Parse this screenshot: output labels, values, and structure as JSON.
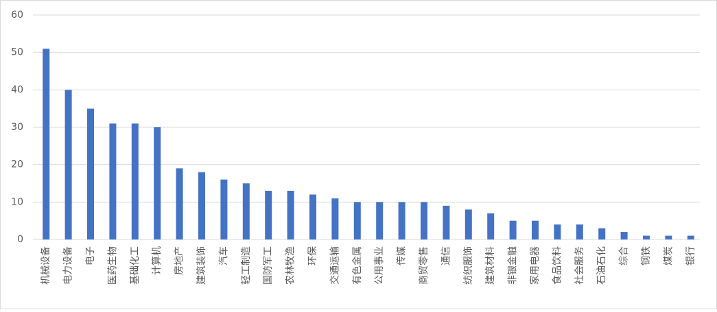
{
  "chart_data": {
    "type": "bar",
    "categories": [
      "机械设备",
      "电力设备",
      "电子",
      "医药生物",
      "基础化工",
      "计算机",
      "房地产",
      "建筑装饰",
      "汽车",
      "轻工制造",
      "国防军工",
      "农林牧渔",
      "环保",
      "交通运输",
      "有色金属",
      "公用事业",
      "传媒",
      "商贸零售",
      "通信",
      "纺织服饰",
      "建筑材料",
      "非银金融",
      "家用电器",
      "食品饮料",
      "社会服务",
      "石油石化",
      "综合",
      "钢铁",
      "煤炭",
      "银行"
    ],
    "values": [
      51,
      40,
      35,
      31,
      31,
      30,
      19,
      18,
      16,
      15,
      13,
      13,
      12,
      11,
      10,
      10,
      10,
      10,
      9,
      8,
      7,
      5,
      5,
      4,
      4,
      3,
      2,
      1,
      1,
      1
    ],
    "color": "#4472c4",
    "ylim": [
      0,
      60
    ],
    "yticks": [
      0,
      10,
      20,
      30,
      40,
      50,
      60
    ],
    "grid": true
  }
}
